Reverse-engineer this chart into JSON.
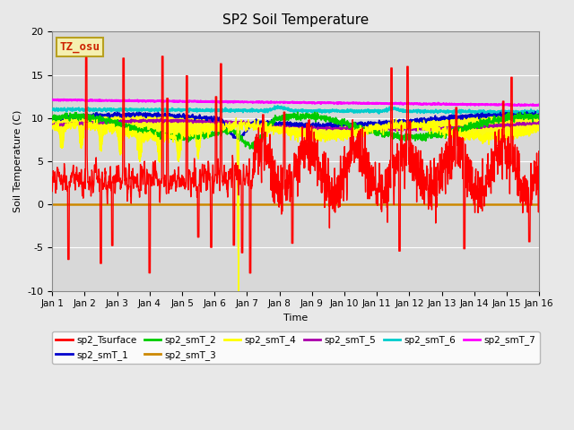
{
  "title": "SP2 Soil Temperature",
  "xlabel": "Time",
  "ylabel": "Soil Temperature (C)",
  "ylim": [
    -10,
    20
  ],
  "xlim": [
    0,
    15
  ],
  "xtick_labels": [
    "Jan 1",
    "Jan 2",
    "Jan 3",
    "Jan 4",
    "Jan 5",
    "Jan 6",
    "Jan 7",
    "Jan 8",
    "Jan 9",
    "Jan 10",
    "Jan 11",
    "Jan 12",
    "Jan 13",
    "Jan 14",
    "Jan 15",
    "Jan 16"
  ],
  "xtick_positions": [
    0,
    1,
    2,
    3,
    4,
    5,
    6,
    7,
    8,
    9,
    10,
    11,
    12,
    13,
    14,
    15
  ],
  "fig_facecolor": "#e8e8e8",
  "ax_facecolor": "#d8d8d8",
  "annotation_text": "TZ_osu",
  "annotation_color": "#cc2200",
  "annotation_bg": "#f5f0b0",
  "annotation_border": "#b8a020",
  "zero_line_color": "#cc8800",
  "col_tsurface": "#ff0000",
  "col_smT_1": "#0000cc",
  "col_smT_2": "#00cc00",
  "col_smT_3": "#cc8800",
  "col_smT_4": "#ffff00",
  "col_smT_5": "#aa00aa",
  "col_smT_6": "#00cccc",
  "col_smT_7": "#ff00ff",
  "yticks": [
    -10,
    -5,
    0,
    5,
    10,
    15,
    20
  ]
}
